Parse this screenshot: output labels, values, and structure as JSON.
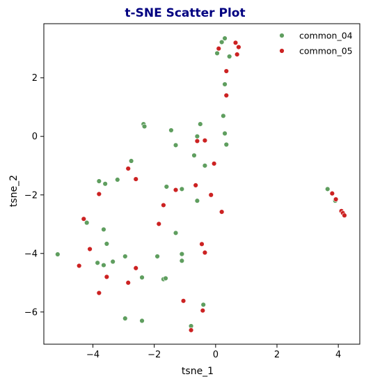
{
  "chart_data": {
    "type": "scatter",
    "title": "t-SNE Scatter Plot",
    "title_color": "#000080",
    "xlabel": "tsne_1",
    "ylabel": "tsne_2",
    "xlim": [
      -5.6,
      4.7
    ],
    "ylim": [
      -7.1,
      3.85
    ],
    "xticks": [
      -4,
      -2,
      0,
      2,
      4
    ],
    "yticks": [
      -6,
      -4,
      -2,
      0,
      2
    ],
    "grid": false,
    "legend_position": "top-right",
    "series": [
      {
        "name": "common_04",
        "color": "#5f9e5f",
        "points": [
          [
            0.3,
            3.35
          ],
          [
            0.2,
            3.22
          ],
          [
            0.05,
            2.84
          ],
          [
            0.45,
            2.73
          ],
          [
            0.3,
            1.78
          ],
          [
            0.25,
            0.7
          ],
          [
            0.3,
            0.1
          ],
          [
            0.35,
            -0.28
          ],
          [
            -0.5,
            0.42
          ],
          [
            -1.45,
            0.21
          ],
          [
            -2.35,
            0.42
          ],
          [
            -2.32,
            0.34
          ],
          [
            -0.6,
            0.0
          ],
          [
            -1.3,
            -0.3
          ],
          [
            -0.35,
            -1.0
          ],
          [
            -0.7,
            -0.65
          ],
          [
            -2.75,
            -0.84
          ],
          [
            -3.8,
            -1.53
          ],
          [
            -3.6,
            -1.62
          ],
          [
            -3.2,
            -1.48
          ],
          [
            -1.6,
            -1.72
          ],
          [
            -1.1,
            -1.8
          ],
          [
            -0.6,
            -2.2
          ],
          [
            -4.2,
            -2.95
          ],
          [
            -3.65,
            -3.18
          ],
          [
            -1.3,
            -3.3
          ],
          [
            -3.55,
            -3.67
          ],
          [
            -3.35,
            -4.28
          ],
          [
            -3.85,
            -4.32
          ],
          [
            -3.65,
            -4.4
          ],
          [
            -2.95,
            -4.1
          ],
          [
            -1.9,
            -4.1
          ],
          [
            -1.1,
            -4.02
          ],
          [
            -1.1,
            -4.25
          ],
          [
            -5.15,
            -4.03
          ],
          [
            -2.4,
            -4.82
          ],
          [
            -1.7,
            -4.88
          ],
          [
            -1.63,
            -4.85
          ],
          [
            -0.4,
            -5.75
          ],
          [
            -2.95,
            -6.22
          ],
          [
            -2.4,
            -6.3
          ],
          [
            -0.8,
            -6.48
          ],
          [
            3.65,
            -1.8
          ],
          [
            3.9,
            -2.2
          ]
        ]
      },
      {
        "name": "common_05",
        "color": "#cc2222",
        "points": [
          [
            0.65,
            3.2
          ],
          [
            0.1,
            3.0
          ],
          [
            0.75,
            3.05
          ],
          [
            0.7,
            2.8
          ],
          [
            0.35,
            2.23
          ],
          [
            0.35,
            1.4
          ],
          [
            -0.6,
            -0.16
          ],
          [
            -0.35,
            -0.14
          ],
          [
            -0.05,
            -0.93
          ],
          [
            -2.85,
            -1.1
          ],
          [
            -2.6,
            -1.46
          ],
          [
            -3.8,
            -1.97
          ],
          [
            -0.65,
            -1.67
          ],
          [
            -1.3,
            -1.83
          ],
          [
            -0.15,
            -2.0
          ],
          [
            -1.7,
            -2.35
          ],
          [
            0.2,
            -2.58
          ],
          [
            -4.3,
            -2.82
          ],
          [
            -1.85,
            -2.99
          ],
          [
            -0.45,
            -3.68
          ],
          [
            -0.35,
            -3.97
          ],
          [
            -4.1,
            -3.85
          ],
          [
            -4.45,
            -4.42
          ],
          [
            -2.6,
            -4.5
          ],
          [
            -3.55,
            -4.8
          ],
          [
            -2.85,
            -5.0
          ],
          [
            -3.8,
            -5.35
          ],
          [
            -1.05,
            -5.62
          ],
          [
            -0.42,
            -5.95
          ],
          [
            -0.8,
            -6.62
          ],
          [
            3.8,
            -1.95
          ],
          [
            3.92,
            -2.15
          ],
          [
            4.1,
            -2.55
          ],
          [
            4.15,
            -2.62
          ],
          [
            4.2,
            -2.7
          ]
        ]
      }
    ]
  }
}
